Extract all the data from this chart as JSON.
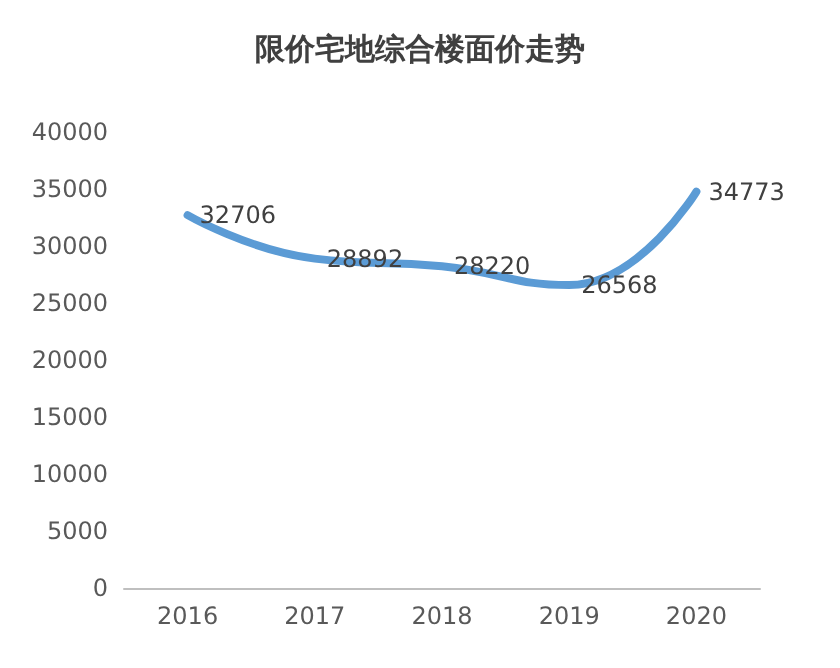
{
  "chart_data": {
    "type": "line",
    "title": "限价宅地综合楼面价走势",
    "categories": [
      "2016",
      "2017",
      "2018",
      "2019",
      "2020"
    ],
    "series": [
      {
        "color": "#5b9bd5",
        "values": [
          32706,
          28892,
          28220,
          26568,
          34773
        ]
      }
    ],
    "ylim": [
      0,
      40000
    ],
    "yticks": [
      0,
      5000,
      10000,
      15000,
      20000,
      25000,
      30000,
      35000,
      40000
    ],
    "grid": false,
    "marker": "none",
    "line_style": "solid",
    "data_labels": true
  }
}
